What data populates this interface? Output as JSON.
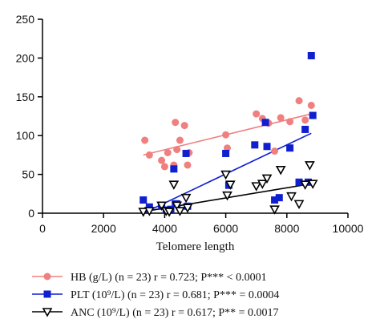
{
  "chart_data": {
    "type": "scatter",
    "xlabel": "Telomere length",
    "ylabel": "",
    "xlim": [
      0,
      10000
    ],
    "ylim": [
      0,
      250
    ],
    "xticks": [
      0,
      2000,
      4000,
      6000,
      8000,
      10000
    ],
    "yticks": [
      0,
      50,
      100,
      150,
      200,
      250
    ],
    "grid": false,
    "legend_position": "bottom",
    "series": [
      {
        "name": "HB",
        "legend_label": "HB (g/L) (n = 23) r = 0.723; P*** < 0.0001",
        "color": "#f08080",
        "marker": "circle",
        "trend": {
          "x": [
            3300,
            8800
          ],
          "y": [
            75,
            128
          ]
        },
        "points": [
          [
            3350,
            94
          ],
          [
            3500,
            75
          ],
          [
            3900,
            68
          ],
          [
            4000,
            60
          ],
          [
            4100,
            78
          ],
          [
            4300,
            62
          ],
          [
            4350,
            117
          ],
          [
            4400,
            82
          ],
          [
            4500,
            94
          ],
          [
            4650,
            113
          ],
          [
            4750,
            62
          ],
          [
            4800,
            78
          ],
          [
            6000,
            101
          ],
          [
            6050,
            84
          ],
          [
            7000,
            128
          ],
          [
            7200,
            122
          ],
          [
            7400,
            116
          ],
          [
            7600,
            80
          ],
          [
            7800,
            123
          ],
          [
            8100,
            118
          ],
          [
            8400,
            145
          ],
          [
            8600,
            120
          ],
          [
            8800,
            139
          ]
        ]
      },
      {
        "name": "PLT",
        "legend_label": "PLT (10⁹/L) (n = 23) r = 0.681; P*** = 0.0004",
        "color": "#1020d0",
        "marker": "square",
        "trend": {
          "x": [
            3300,
            8800
          ],
          "y": [
            0,
            103
          ]
        },
        "points": [
          [
            3300,
            17
          ],
          [
            3500,
            8
          ],
          [
            3900,
            9
          ],
          [
            4050,
            4
          ],
          [
            4200,
            5
          ],
          [
            4300,
            57
          ],
          [
            4350,
            12
          ],
          [
            4400,
            12
          ],
          [
            4700,
            77
          ],
          [
            4750,
            9
          ],
          [
            6000,
            77
          ],
          [
            6100,
            36
          ],
          [
            6950,
            88
          ],
          [
            7300,
            117
          ],
          [
            7350,
            86
          ],
          [
            7600,
            17
          ],
          [
            7750,
            20
          ],
          [
            8100,
            84
          ],
          [
            8400,
            40
          ],
          [
            8600,
            108
          ],
          [
            8700,
            40
          ],
          [
            8800,
            203
          ],
          [
            8850,
            126
          ]
        ]
      },
      {
        "name": "ANC",
        "legend_label": "ANC (10⁹/L) (n = 23) r = 0.617; P** = 0.0017",
        "color": "#000000",
        "marker": "triangle-down",
        "trend": {
          "x": [
            3300,
            8800
          ],
          "y": [
            2,
            38
          ]
        },
        "points": [
          [
            3300,
            2
          ],
          [
            3500,
            3
          ],
          [
            3900,
            10
          ],
          [
            4050,
            3
          ],
          [
            4150,
            2
          ],
          [
            4300,
            37
          ],
          [
            4400,
            10
          ],
          [
            4500,
            3
          ],
          [
            4700,
            20
          ],
          [
            4750,
            7
          ],
          [
            6000,
            50
          ],
          [
            6050,
            23
          ],
          [
            6150,
            37
          ],
          [
            7000,
            35
          ],
          [
            7200,
            38
          ],
          [
            7350,
            45
          ],
          [
            7600,
            5
          ],
          [
            7800,
            56
          ],
          [
            8150,
            22
          ],
          [
            8400,
            12
          ],
          [
            8600,
            37
          ],
          [
            8750,
            62
          ],
          [
            8850,
            38
          ]
        ]
      }
    ]
  }
}
